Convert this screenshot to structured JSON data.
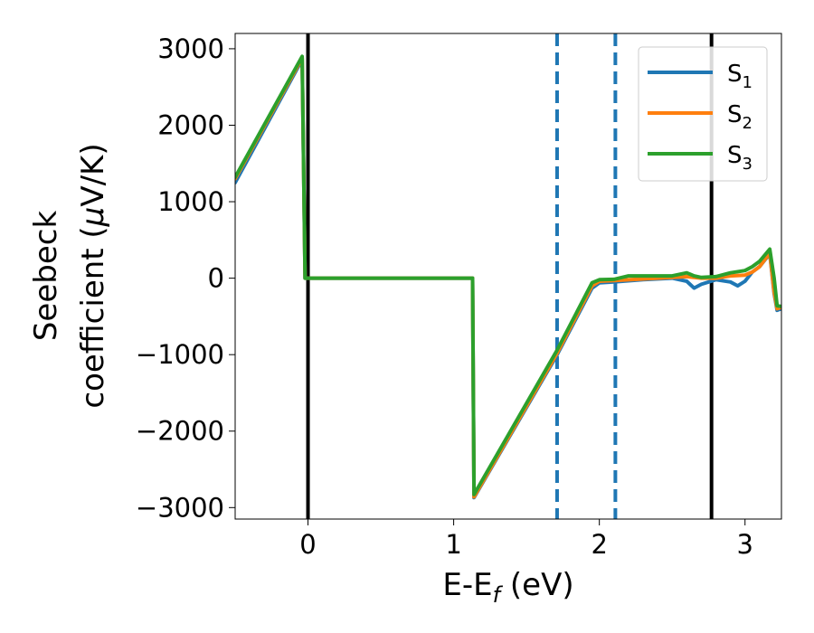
{
  "chart_data": {
    "type": "line",
    "xlabel_main": "E-E",
    "xlabel_sub": "f",
    "xlabel_unit": " (eV)",
    "ylabel_line1": "Seebeck",
    "ylabel_line2_text": "coefficient  (",
    "ylabel_mu": "μ",
    "ylabel_unit": "V/K)",
    "xlim": [
      -0.5,
      3.25
    ],
    "ylim": [
      -3150,
      3200
    ],
    "xticks": [
      0,
      1,
      2,
      3
    ],
    "xtick_labels": [
      "0",
      "1",
      "2",
      "3"
    ],
    "yticks": [
      -3000,
      -2000,
      -1000,
      0,
      1000,
      2000,
      3000
    ],
    "ytick_labels": [
      "−3000",
      "−2000",
      "−1000",
      "0",
      "1000",
      "2000",
      "3000"
    ],
    "grid": false,
    "legend_position": "top-right",
    "vertical_lines": [
      {
        "x": 0.0,
        "style": "solid",
        "color": "#000000"
      },
      {
        "x": 2.77,
        "style": "solid",
        "color": "#000000"
      },
      {
        "x": 1.71,
        "style": "dashed",
        "color": "#1f77b4"
      },
      {
        "x": 2.11,
        "style": "dashed",
        "color": "#1f77b4"
      }
    ],
    "series": [
      {
        "name": "S",
        "sub": "1",
        "color": "#1f77b4",
        "x": [
          -0.5,
          -0.04,
          -0.04,
          -0.02,
          1.13,
          1.13,
          1.14,
          1.71,
          1.95,
          2.0,
          2.1,
          2.3,
          2.5,
          2.6,
          2.65,
          2.7,
          2.8,
          2.9,
          2.95,
          3.0,
          3.05,
          3.1,
          3.17,
          3.2,
          3.22,
          3.25
        ],
        "y": [
          1250,
          2860,
          2860,
          0,
          0,
          0,
          -2870,
          -1000,
          -130,
          -60,
          -50,
          -20,
          0,
          -40,
          -130,
          -80,
          -20,
          -50,
          -100,
          -40,
          80,
          150,
          320,
          -200,
          -420,
          -400
        ]
      },
      {
        "name": "S",
        "sub": "2",
        "color": "#ff7f0e",
        "x": [
          -0.5,
          -0.04,
          -0.04,
          -0.02,
          1.13,
          1.13,
          1.14,
          1.71,
          1.95,
          2.0,
          2.1,
          2.3,
          2.5,
          2.6,
          2.7,
          2.8,
          2.9,
          3.0,
          3.05,
          3.1,
          3.17,
          3.2,
          3.22,
          3.25
        ],
        "y": [
          1300,
          2880,
          2880,
          0,
          0,
          0,
          -2860,
          -980,
          -100,
          -40,
          -30,
          -10,
          10,
          20,
          0,
          0,
          30,
          40,
          80,
          150,
          330,
          -180,
          -400,
          -380
        ]
      },
      {
        "name": "S",
        "sub": "3",
        "color": "#2ca02c",
        "x": [
          -0.5,
          -0.04,
          -0.04,
          -0.02,
          1.13,
          1.13,
          1.14,
          1.71,
          1.95,
          2.0,
          2.1,
          2.2,
          2.3,
          2.5,
          2.6,
          2.65,
          2.7,
          2.8,
          2.9,
          3.0,
          3.05,
          3.1,
          3.17,
          3.2,
          3.22,
          3.25
        ],
        "y": [
          1320,
          2900,
          2900,
          0,
          0,
          0,
          -2830,
          -940,
          -60,
          -20,
          -15,
          30,
          30,
          30,
          70,
          30,
          10,
          20,
          70,
          100,
          150,
          220,
          380,
          0,
          -360,
          -370
        ]
      }
    ]
  }
}
